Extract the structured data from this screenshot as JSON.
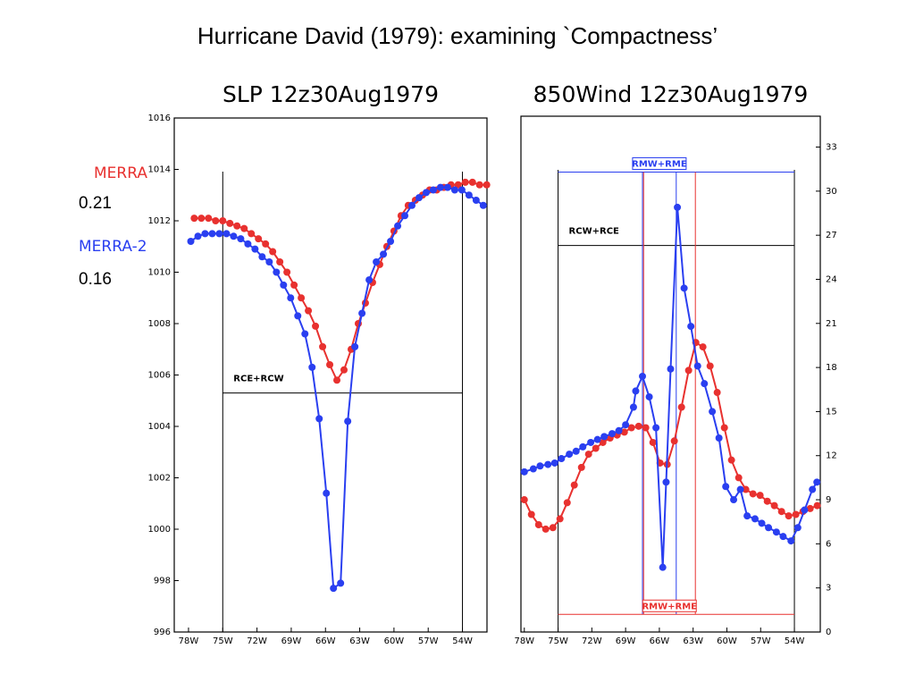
{
  "title": "Hurricane David (1979): examining  `Compactness’",
  "legend": [
    {
      "name": "MERRA",
      "color": "#e8312f",
      "value": 0.21
    },
    {
      "name": "MERRA-2",
      "color": "#2a3ff0",
      "value": 0.16
    }
  ],
  "chart_data": [
    {
      "type": "line",
      "title": "SLP 12z30Aug1979",
      "xlim": [
        -79.25,
        -51.85
      ],
      "ylim": [
        996,
        1016
      ],
      "xticks": [
        {
          "value": -78,
          "label": "78W"
        },
        {
          "value": -75,
          "label": "75W"
        },
        {
          "value": -72,
          "label": "72W"
        },
        {
          "value": -69,
          "label": "69W"
        },
        {
          "value": -66,
          "label": "66W"
        },
        {
          "value": -63,
          "label": "63W"
        },
        {
          "value": -60,
          "label": "60W"
        },
        {
          "value": -57,
          "label": "57W"
        },
        {
          "value": -54,
          "label": "54W"
        }
      ],
      "yticks": [
        996,
        998,
        1000,
        1002,
        1004,
        1006,
        1008,
        1010,
        1012,
        1014,
        1016
      ],
      "y_axis_side": "left",
      "box_x": [
        -75,
        -54
      ],
      "annotations": [
        {
          "label": "RCE+RCW",
          "color": "#000000",
          "y": 1005.3
        }
      ],
      "series": [
        {
          "color": "#e8312f",
          "x": [
            -77.5,
            -76.875,
            -76.25,
            -75.625,
            -75,
            -74.375,
            -73.75,
            -73.125,
            -72.5,
            -71.875,
            -71.25,
            -70.625,
            -70,
            -69.375,
            -68.75,
            -68.125,
            -67.5,
            -66.875,
            -66.25,
            -65.625,
            -65,
            -64.375,
            -63.75,
            -63.125,
            -62.5,
            -61.875,
            -61.25,
            -60.625,
            -60,
            -59.375,
            -58.75,
            -58.125,
            -57.5,
            -56.875,
            -56.25,
            -55.625,
            -55,
            -54.375,
            -53.75,
            -53.125,
            -52.5,
            -51.875
          ],
          "values": [
            1012.1,
            1012.1,
            1012.1,
            1012.0,
            1012.0,
            1011.9,
            1011.8,
            1011.7,
            1011.5,
            1011.3,
            1011.1,
            1010.8,
            1010.4,
            1010.0,
            1009.5,
            1009.0,
            1008.5,
            1007.9,
            1007.1,
            1006.4,
            1005.8,
            1006.2,
            1007.0,
            1008.0,
            1008.8,
            1009.6,
            1010.3,
            1011.0,
            1011.6,
            1012.2,
            1012.6,
            1012.8,
            1013.0,
            1013.2,
            1013.2,
            1013.3,
            1013.4,
            1013.4,
            1013.5,
            1013.5,
            1013.4,
            1013.4
          ]
        },
        {
          "color": "#2a3ff0",
          "x": [
            -77.8,
            -77.175,
            -76.55,
            -75.925,
            -75.3,
            -74.675,
            -74.05,
            -73.425,
            -72.8,
            -72.175,
            -71.55,
            -70.925,
            -70.3,
            -69.675,
            -69.05,
            -68.425,
            -67.8,
            -67.175,
            -66.55,
            -65.925,
            -65.3,
            -64.675,
            -64.05,
            -63.425,
            -62.8,
            -62.175,
            -61.55,
            -60.925,
            -60.3,
            -59.675,
            -59.05,
            -58.425,
            -57.8,
            -57.175,
            -56.55,
            -55.925,
            -55.3,
            -54.675,
            -54.05,
            -53.425,
            -52.8,
            -52.175
          ],
          "values": [
            1011.2,
            1011.4,
            1011.5,
            1011.5,
            1011.5,
            1011.5,
            1011.4,
            1011.3,
            1011.1,
            1010.9,
            1010.6,
            1010.4,
            1010.0,
            1009.5,
            1009.0,
            1008.3,
            1007.6,
            1006.3,
            1004.3,
            1001.4,
            997.7,
            997.9,
            1004.2,
            1007.1,
            1008.4,
            1009.7,
            1010.4,
            1010.7,
            1011.2,
            1011.8,
            1012.2,
            1012.6,
            1012.9,
            1013.1,
            1013.2,
            1013.3,
            1013.3,
            1013.2,
            1013.2,
            1013.0,
            1012.8,
            1012.6
          ]
        }
      ]
    },
    {
      "type": "line",
      "title": "850Wind 12z30Aug1979",
      "xlim": [
        -78.3,
        -51.7
      ],
      "ylim": [
        0,
        35.1
      ],
      "xticks": [
        {
          "value": -78,
          "label": "78W"
        },
        {
          "value": -75,
          "label": "75W"
        },
        {
          "value": -72,
          "label": "72W"
        },
        {
          "value": -69,
          "label": "69W"
        },
        {
          "value": -66,
          "label": "66W"
        },
        {
          "value": -63,
          "label": "63W"
        },
        {
          "value": -60,
          "label": "60W"
        },
        {
          "value": -57,
          "label": "57W"
        },
        {
          "value": -54,
          "label": "54W"
        }
      ],
      "yticks": [
        0,
        3,
        6,
        9,
        12,
        15,
        18,
        21,
        24,
        27,
        30,
        33
      ],
      "y_axis_side": "right",
      "box_x": [
        -75,
        -54
      ],
      "annotations": [
        {
          "label": "RCW+RCE",
          "color": "#000000",
          "y": 26.3
        },
        {
          "label": "RMW+RME",
          "color": "#2a3ff0",
          "y": 31.3,
          "x": [
            -67.5,
            -64.5
          ]
        },
        {
          "label": "RMW+RME",
          "color": "#e8312f",
          "y": 1.2,
          "x": [
            -67.4,
            -62.8
          ]
        }
      ],
      "series": [
        {
          "color": "#e8312f",
          "x": [
            -78,
            -77.37,
            -76.73,
            -76.1,
            -75.46,
            -74.83,
            -74.19,
            -73.56,
            -72.92,
            -72.29,
            -71.65,
            -71.02,
            -70.38,
            -69.75,
            -69.11,
            -68.48,
            -67.84,
            -67.21,
            -66.57,
            -65.94,
            -65.3,
            -64.67,
            -64.03,
            -63.4,
            -62.76,
            -62.13,
            -61.49,
            -60.86,
            -60.22,
            -59.59,
            -58.95,
            -58.32,
            -57.68,
            -57.05,
            -56.41,
            -55.78,
            -55.14,
            -54.51,
            -53.87,
            -53.24,
            -52.6,
            -51.97
          ],
          "values": [
            9.0,
            8.0,
            7.3,
            7.0,
            7.1,
            7.7,
            8.8,
            10.0,
            11.2,
            12.1,
            12.5,
            12.9,
            13.2,
            13.4,
            13.6,
            13.9,
            14.0,
            13.9,
            12.9,
            11.5,
            11.4,
            13.0,
            15.3,
            17.8,
            19.7,
            19.4,
            18.1,
            16.3,
            13.9,
            11.7,
            10.5,
            9.7,
            9.4,
            9.3,
            8.9,
            8.6,
            8.2,
            7.9,
            8.0,
            8.2,
            8.4,
            8.6
          ]
        },
        {
          "color": "#2a3ff0",
          "x": [
            -78.0,
            -77.2,
            -76.6,
            -75.9,
            -75.3,
            -74.7,
            -74.0,
            -73.4,
            -72.8,
            -72.1,
            -71.5,
            -70.9,
            -70.2,
            -69.6,
            -69.0,
            -68.3,
            -68.1,
            -67.5,
            -66.9,
            -66.3,
            -65.7,
            -65.4,
            -65.0,
            -64.4,
            -63.8,
            -63.2,
            -62.6,
            -62.0,
            -61.3,
            -60.7,
            -60.1,
            -59.4,
            -58.8,
            -58.2,
            -57.5,
            -56.9,
            -56.3,
            -55.6,
            -55.0,
            -54.3,
            -53.7,
            -53.1,
            -52.4,
            -52.0
          ],
          "values": [
            10.9,
            11.1,
            11.3,
            11.4,
            11.5,
            11.8,
            12.1,
            12.3,
            12.6,
            12.9,
            13.1,
            13.3,
            13.5,
            13.7,
            14.1,
            15.3,
            16.4,
            17.4,
            16.0,
            13.9,
            4.4,
            10.2,
            17.9,
            28.9,
            23.4,
            20.8,
            18.1,
            16.9,
            15.0,
            13.2,
            9.9,
            9.0,
            9.7,
            7.9,
            7.7,
            7.4,
            7.1,
            6.8,
            6.5,
            6.2,
            7.1,
            8.3,
            9.7,
            10.2
          ]
        }
      ]
    }
  ]
}
